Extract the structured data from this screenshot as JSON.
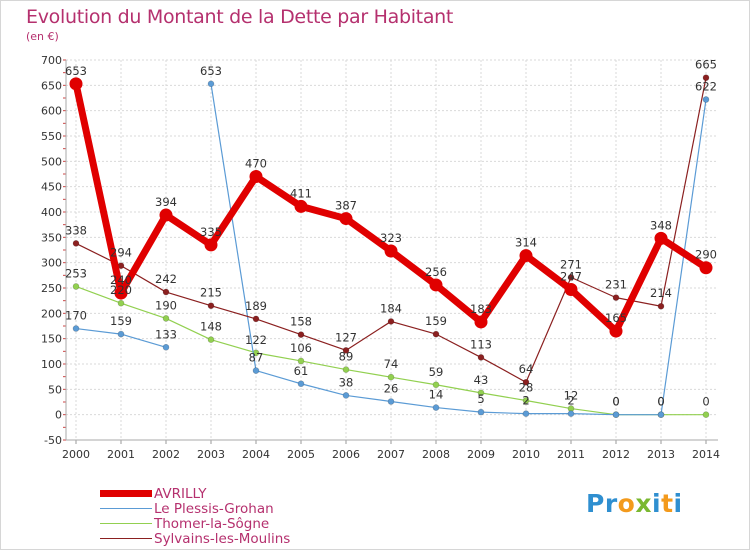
{
  "title": "Evolution du Montant de la Dette par Habitant",
  "subtitle": "(en €)",
  "logo": {
    "letters": [
      {
        "ch": "P",
        "color": "#2f8fd0"
      },
      {
        "ch": "r",
        "color": "#2f8fd0"
      },
      {
        "ch": "o",
        "color": "#f39a1c"
      },
      {
        "ch": "x",
        "color": "#7ab830"
      },
      {
        "ch": "i",
        "color": "#2f8fd0"
      },
      {
        "ch": "t",
        "color": "#f39a1c"
      },
      {
        "ch": "i",
        "color": "#2f8fd0"
      }
    ]
  },
  "chart_data": {
    "type": "line",
    "categories": [
      "2000",
      "2001",
      "2002",
      "2003",
      "2004",
      "2005",
      "2006",
      "2007",
      "2008",
      "2009",
      "2010",
      "2011",
      "2012",
      "2013",
      "2014"
    ],
    "ylim": [
      -50,
      700
    ],
    "yticks": [
      -50,
      0,
      50,
      100,
      150,
      200,
      250,
      300,
      350,
      400,
      450,
      500,
      550,
      600,
      650,
      700
    ],
    "grid": true,
    "legend_position": "bottom-left",
    "series": [
      {
        "name": "AVRILLY",
        "color": "#e00000",
        "values": [
          653,
          240,
          394,
          335,
          470,
          411,
          387,
          323,
          256,
          183,
          314,
          247,
          165,
          348,
          290
        ],
        "labels": [
          "653",
          "240",
          "394",
          "335",
          "470",
          "411",
          "387",
          "323",
          "256",
          "183",
          "314",
          "247",
          "165",
          "348",
          "290"
        ]
      },
      {
        "name": "Le Plessis-Grohan",
        "color": "#5b9bd5",
        "values": [
          170,
          159,
          133,
          653,
          87,
          61,
          38,
          26,
          14,
          5,
          2,
          2,
          0,
          0,
          622
        ],
        "labels": [
          "170",
          "159",
          "133",
          "653",
          "87",
          "61",
          "38",
          "26",
          "14",
          "5",
          "2",
          "2",
          "0",
          "0",
          "622"
        ],
        "gap_after_index": 2
      },
      {
        "name": "Thomer-la-Sôgne",
        "color": "#92d050",
        "values": [
          253,
          220,
          190,
          148,
          122,
          106,
          89,
          74,
          59,
          43,
          28,
          12,
          0,
          0,
          0
        ],
        "labels": [
          "253",
          "220",
          "190",
          "148",
          "122",
          "106",
          "89",
          "74",
          "59",
          "43",
          "28",
          "12",
          "0",
          "0",
          "0"
        ]
      },
      {
        "name": "Sylvains-les-Moulins",
        "color": "#8b2020",
        "values": [
          338,
          294,
          242,
          215,
          189,
          158,
          127,
          184,
          159,
          113,
          64,
          271,
          231,
          214,
          665
        ],
        "labels": [
          "338",
          "294",
          "242",
          "215",
          "189",
          "158",
          "127",
          "184",
          "159",
          "113",
          "64",
          "271",
          "231",
          "214",
          "665"
        ]
      }
    ]
  }
}
